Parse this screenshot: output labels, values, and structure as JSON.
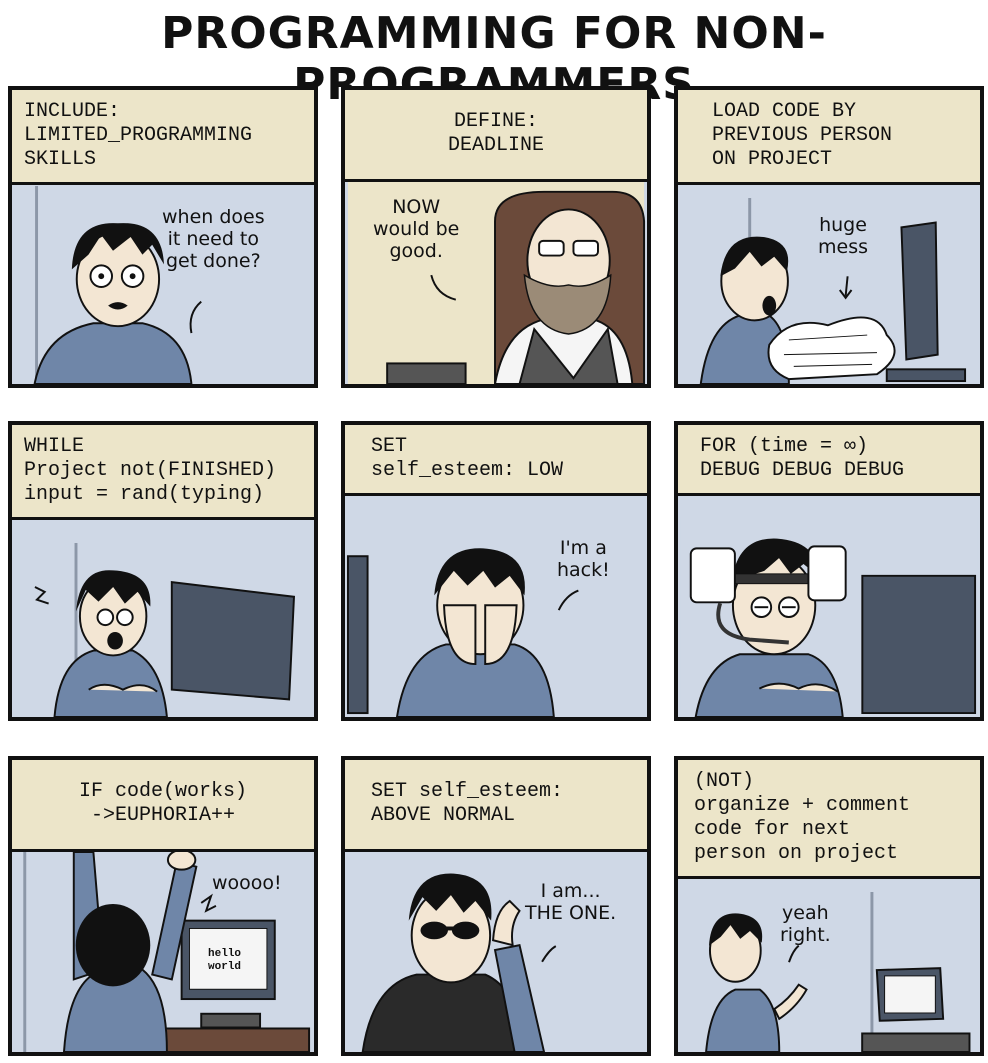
{
  "comic": {
    "title": "PROGRAMMING FOR NON-PROGRAMMERS",
    "panels": [
      {
        "caption": "INCLUDE:\nLIMITED_PROGRAMMING\nSKILLS",
        "speech": "when does\nit need to\nget done?"
      },
      {
        "caption": "DEFINE:\nDEADLINE",
        "speech": "NOW\nwould be\ngood."
      },
      {
        "caption": "LOAD CODE BY\nPREVIOUS PERSON\nON PROJECT",
        "speech": "huge\nmess"
      },
      {
        "caption": "WHILE\nProject not(FINISHED)\ninput = rand(typing)",
        "speech": ""
      },
      {
        "caption": "SET\nself_esteem: LOW",
        "speech": "I'm a\nhack!"
      },
      {
        "caption": "FOR (time = ∞)\nDEBUG DEBUG DEBUG",
        "speech": ""
      },
      {
        "caption": "IF code(works)\n->EUPHORIA++",
        "speech": "woooo!",
        "screen_text": "hello\nworld"
      },
      {
        "caption": "SET self_esteem:\nABOVE NORMAL",
        "speech": "I am...\nTHE ONE."
      },
      {
        "caption": "(NOT)\norganize + comment\ncode for next\nperson on project",
        "speech": "yeah\nright."
      }
    ]
  },
  "colors": {
    "panel_bg": "#cfd8e6",
    "caption_bg": "#ece5c9",
    "shirt": "#6f86a8",
    "hair": "#111111",
    "skin": "#f3e6d3",
    "monitor": "#4a5566"
  }
}
